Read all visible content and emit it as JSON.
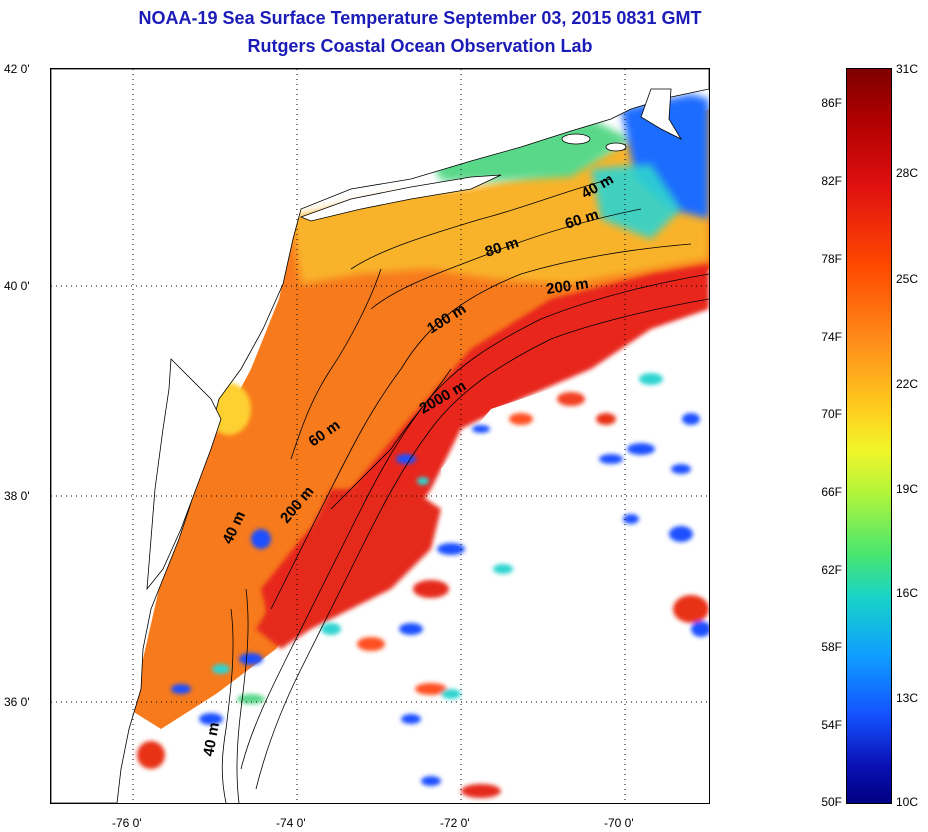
{
  "header": {
    "title_line_1": "NOAA-19 Sea Surface Temperature September 03, 2015 0831 GMT",
    "title_line_2": "Rutgers Coastal Ocean Observation Lab"
  },
  "map": {
    "lat_labels": [
      "42 0'",
      "40 0'",
      "38 0'",
      "36 0'"
    ],
    "lon_labels": [
      "-76 0'",
      "-74 0'",
      "-72 0'",
      "-70 0'"
    ],
    "lat_range": [
      35.0,
      42.0
    ],
    "lon_range": [
      -77.0,
      -69.0
    ],
    "grid": "dotted",
    "depth_contour_labels": [
      "40 m",
      "60 m",
      "80 m",
      "200 m",
      "100 m",
      "2000 m",
      "60 m",
      "200 m",
      "40 m",
      "40 m"
    ]
  },
  "colorbar": {
    "celsius_ticks": [
      "31C",
      "28C",
      "25C",
      "22C",
      "19C",
      "16C",
      "13C",
      "10C"
    ],
    "fahrenheit_ticks": [
      "86F",
      "82F",
      "78F",
      "74F",
      "70F",
      "66F",
      "62F",
      "58F",
      "54F",
      "50F"
    ],
    "range_c": [
      10,
      31
    ],
    "colors_top_to_bottom": [
      "#7f0000",
      "#e01010",
      "#ff8c1a",
      "#f1f52a",
      "#49e66e",
      "#18d4c8",
      "#1452ff",
      "#000080"
    ]
  }
}
